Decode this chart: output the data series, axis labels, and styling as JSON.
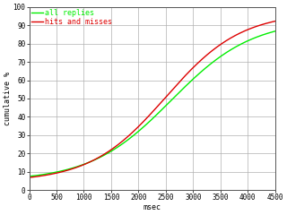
{
  "xlabel": "msec",
  "ylabel": "cumulative %",
  "xlim": [
    0,
    4500
  ],
  "ylim": [
    0,
    100
  ],
  "xticks": [
    0,
    500,
    1000,
    1500,
    2000,
    2500,
    3000,
    3500,
    4000,
    4500
  ],
  "yticks": [
    0,
    10,
    20,
    30,
    40,
    50,
    60,
    70,
    80,
    90,
    100
  ],
  "legend": [
    {
      "label": "all replies",
      "color": "#00ee00"
    },
    {
      "label": "hits and misses",
      "color": "#dd0000"
    }
  ],
  "background_color": "#ffffff",
  "grid_color": "#b0b0b0",
  "line_width": 1.0,
  "curve_all": {
    "x0": 2600,
    "k": 0.00135,
    "ymin": 5.0,
    "ymax": 93.0
  },
  "curve_hm": {
    "x0": 2500,
    "k": 0.00145,
    "ymin": 4.5,
    "ymax": 97.0
  }
}
